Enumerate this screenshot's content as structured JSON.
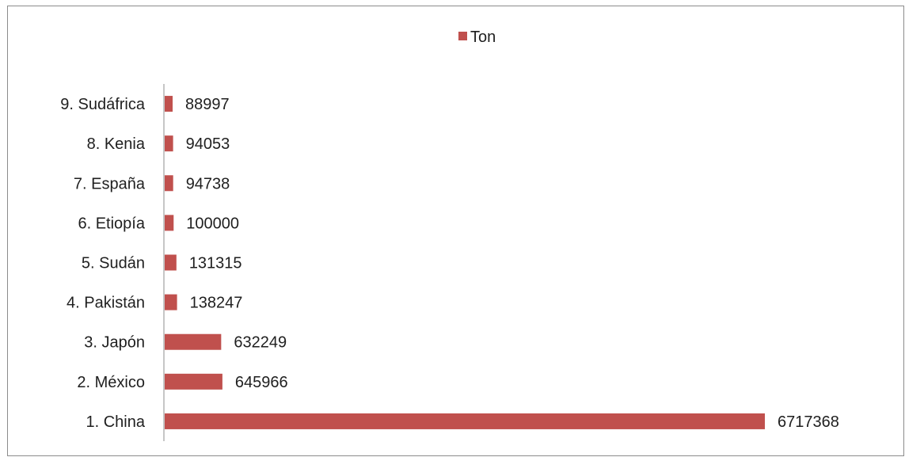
{
  "chart_data": {
    "type": "bar",
    "orientation": "horizontal",
    "categories": [
      "1. China",
      "2. México",
      "3. Japón",
      "4. Pakistán",
      "5. Sudán",
      "6. Etiopía",
      "7. España",
      "8. Kenia",
      "9. Sudáfrica"
    ],
    "series": [
      {
        "name": "Ton",
        "color": "#c0504d",
        "values": [
          6717368,
          645966,
          632249,
          138247,
          131315,
          100000,
          94738,
          94053,
          88997
        ]
      }
    ],
    "data_labels": [
      "6717368",
      "645966",
      "632249",
      "138247",
      "131315",
      "100000",
      "94738",
      "94053",
      "88997"
    ],
    "legend": {
      "position": "top",
      "label": "Ton"
    },
    "title": "",
    "xlabel": "",
    "ylabel": "",
    "grid": false,
    "xlim": [
      0,
      7000000
    ]
  }
}
